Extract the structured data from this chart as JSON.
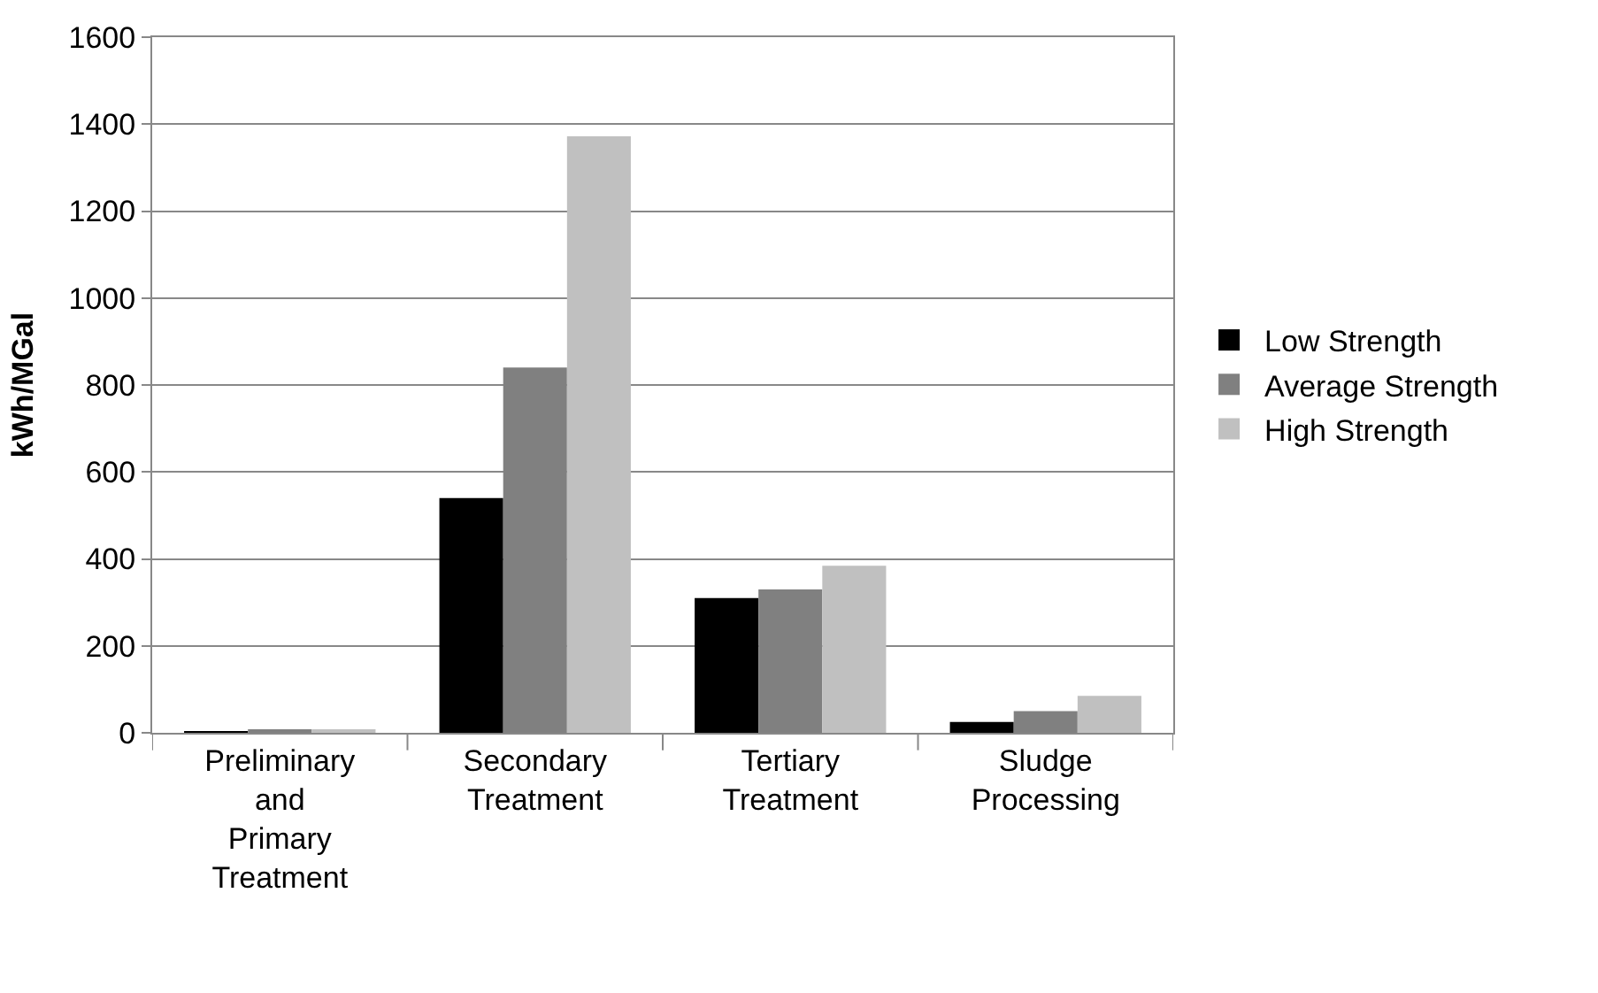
{
  "chart_data": {
    "type": "bar",
    "ylabel": "kWh/MGal",
    "categories": [
      "Preliminary\nand\nPrimary\nTreatment",
      "Secondary\nTreatment",
      "Tertiary\nTreatment",
      "Sludge\nProcessing"
    ],
    "series": [
      {
        "name": "Low Strength",
        "color": "#000000",
        "values": [
          3,
          540,
          310,
          25
        ]
      },
      {
        "name": "Average Strength",
        "color": "#808080",
        "values": [
          5,
          840,
          330,
          50
        ]
      },
      {
        "name": "High Strength",
        "color": "#c0c0c0",
        "values": [
          8,
          1372,
          384,
          85
        ]
      }
    ],
    "ylim": [
      0,
      1600
    ],
    "yticks": [
      0,
      200,
      400,
      600,
      800,
      1000,
      1200,
      1400,
      1600
    ],
    "grid": "y",
    "legend": "right"
  }
}
